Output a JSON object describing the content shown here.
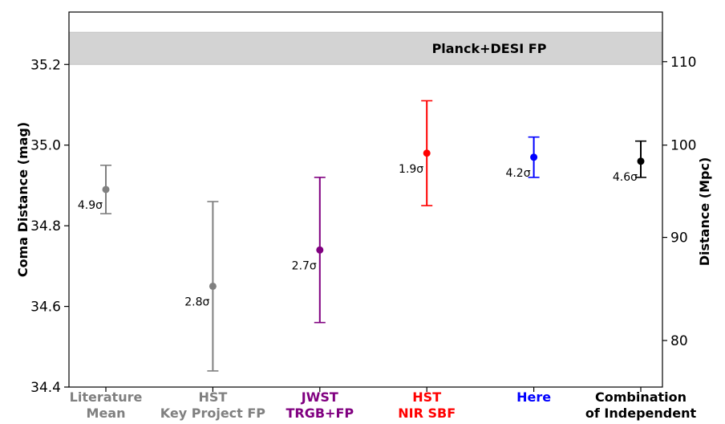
{
  "chart_data": {
    "type": "scatter",
    "title": "",
    "ylabel_left": "Coma Distance (mag)",
    "ylabel_right": "Distance (Mpc)",
    "ylim": [
      34.4,
      35.33
    ],
    "yticks_left": [
      "34.4",
      "34.6",
      "34.8",
      "35.0",
      "35.2"
    ],
    "yticks_right": [
      {
        "label": "80",
        "mpc": 80
      },
      {
        "label": "90",
        "mpc": 90
      },
      {
        "label": "100",
        "mpc": 100
      },
      {
        "label": "110",
        "mpc": 110
      }
    ],
    "band": {
      "label": "Planck+DESI FP",
      "low": 35.2,
      "high": 35.28,
      "color": "#d3d3d3"
    },
    "points": [
      {
        "line1": "Literature",
        "line2": "Mean",
        "value": 34.89,
        "err_low": 34.83,
        "err_high": 34.95,
        "sigma": "4.9σ",
        "color": "#808080"
      },
      {
        "line1": "HST",
        "line2": "Key Project FP",
        "value": 34.65,
        "err_low": 34.44,
        "err_high": 34.86,
        "sigma": "2.8σ",
        "color": "#808080"
      },
      {
        "line1": "JWST",
        "line2": "TRGB+FP",
        "value": 34.74,
        "err_low": 34.56,
        "err_high": 34.92,
        "sigma": "2.7σ",
        "color": "#800080"
      },
      {
        "line1": "HST",
        "line2": "NIR SBF",
        "value": 34.98,
        "err_low": 34.85,
        "err_high": 35.11,
        "sigma": "1.9σ",
        "color": "#ff0000"
      },
      {
        "line1": "Here",
        "line2": "",
        "value": 34.97,
        "err_low": 34.92,
        "err_high": 35.02,
        "sigma": "4.2σ",
        "color": "#0000ff"
      },
      {
        "line1": "Combination",
        "line2": "of Independent",
        "value": 34.96,
        "err_low": 34.92,
        "err_high": 35.01,
        "sigma": "4.6σ",
        "color": "#000000"
      }
    ]
  }
}
